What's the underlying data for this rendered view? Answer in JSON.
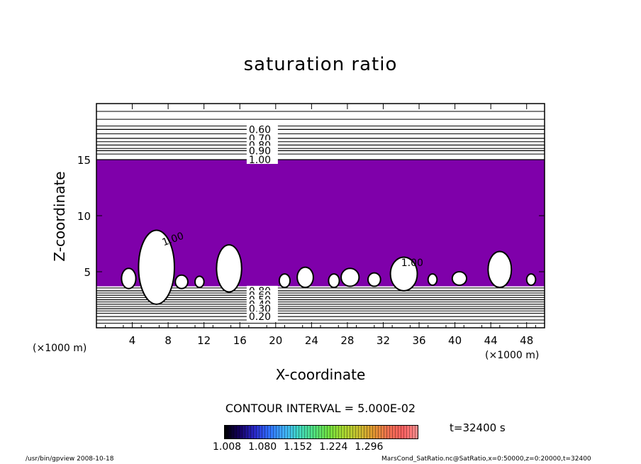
{
  "chart_data": {
    "type": "contour",
    "title": "saturation ratio",
    "xlabel": "X-coordinate",
    "ylabel": "Z-coordinate",
    "x_unit": "(×1000 m)",
    "z_unit": "(×1000 m)",
    "xlim": [
      0,
      50
    ],
    "ylim": [
      0,
      20
    ],
    "x_ticks": [
      4,
      8,
      12,
      16,
      20,
      24,
      28,
      32,
      36,
      40,
      44,
      48
    ],
    "y_ticks": [
      5,
      10,
      15
    ],
    "fill_color": "#7f00aa",
    "supersaturated_layer": [
      3.7,
      15
    ],
    "upper_contours": [
      {
        "z": 17.7,
        "label": "0.60"
      },
      {
        "z": 16.9,
        "label": "0.70"
      },
      {
        "z": 16.3,
        "label": "0.80"
      },
      {
        "z": 15.8,
        "label": "0.90"
      },
      {
        "z": 15.0,
        "label": "1.00"
      }
    ],
    "lower_contours": [
      {
        "z": 3.3,
        "label": "0.80"
      },
      {
        "z": 2.9,
        "label": "0.60"
      },
      {
        "z": 2.5,
        "label": "0.50"
      },
      {
        "z": 2.1,
        "label": "0.40"
      },
      {
        "z": 1.7,
        "label": "0.30"
      },
      {
        "z": 1.0,
        "label": "0.20"
      }
    ],
    "cloud_label": "1.00",
    "contour_interval": "CONTOUR INTERVAL = 5.000E-02",
    "time": "t=32400 s",
    "colorbar_ticks": [
      "1.008",
      "1.080",
      "1.152",
      "1.224",
      "1.296"
    ]
  },
  "footer": {
    "left": "/usr/bin/gpview   2008-10-18",
    "right": "MarsCond_SatRatio.nc@SatRatio,x=0:50000,z=0:20000,t=32400"
  }
}
